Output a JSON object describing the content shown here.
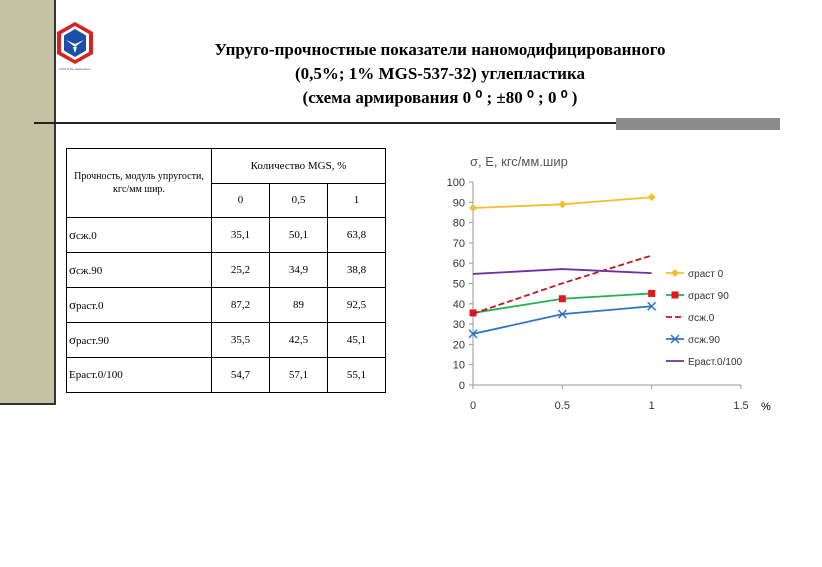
{
  "title": {
    "line1": "Упруго-прочностные показатели наномодифицированного",
    "line2": "(0,5%; 1% MGS-537-32) углепластика",
    "line3": "(схема армирования 0 ⁰  ; ±80  ⁰  ; 0 ⁰ )"
  },
  "logo": {
    "icon": "hexagon-bird-logo-icon",
    "caption": "ООО НТЦ «Композит»"
  },
  "table": {
    "header_left": "Прочность, модуль упругости, кгс/мм шир.",
    "header_top": "Количество MGS, %",
    "columns": [
      "0",
      "0,5",
      "1"
    ],
    "rows": [
      {
        "symbol": "σ",
        "label": "сж.0",
        "values": [
          "35,1",
          "50,1",
          "63,8"
        ]
      },
      {
        "symbol": "σ",
        "label": "сж.90",
        "values": [
          "25,2",
          "34,9",
          "38,8"
        ]
      },
      {
        "symbol": "σ",
        "label": "раст.0",
        "values": [
          "87,2",
          "89",
          "92,5"
        ]
      },
      {
        "symbol": "σ",
        "label": "раст.90",
        "values": [
          "35,5",
          "42,5",
          "45,1"
        ]
      },
      {
        "symbol": "Е",
        "label": "раст.0/100",
        "values": [
          "54,7",
          "57,1",
          "55,1"
        ]
      }
    ]
  },
  "chart_data": {
    "type": "line",
    "title": "σ, Е, кгс/мм.шир",
    "xlabel": "%",
    "x": [
      0,
      0.5,
      1
    ],
    "xlim": [
      0,
      1.5
    ],
    "ylim": [
      0,
      100
    ],
    "x_ticks": [
      0,
      0.5,
      1,
      1.5
    ],
    "y_ticks": [
      0,
      10,
      20,
      30,
      40,
      50,
      60,
      70,
      80,
      90,
      100
    ],
    "x_tick_labels": [
      "0",
      "0.5",
      "1",
      "1.5"
    ],
    "legend_position": "right",
    "grid": false,
    "series": [
      {
        "name": "σраст 0",
        "values": [
          87.2,
          89,
          92.5
        ],
        "color": "#f0c030",
        "marker": "diamond",
        "dash": ""
      },
      {
        "name": "σраст 90",
        "values": [
          35.5,
          42.5,
          45.1
        ],
        "color": "#22b14c",
        "marker": "square",
        "marker_color": "#e8141b",
        "dash": ""
      },
      {
        "name": "σсж.0",
        "values": [
          35.1,
          50.1,
          63.8
        ],
        "color": "#c0151b",
        "marker": "none",
        "dash": "6,3"
      },
      {
        "name": "σсж.90",
        "values": [
          25.2,
          34.9,
          38.8
        ],
        "color": "#2e74c0",
        "marker": "x",
        "dash": ""
      },
      {
        "name": "Ераст.0/100",
        "values": [
          54.7,
          57.1,
          55.1
        ],
        "color": "#7030a0",
        "marker": "none",
        "dash": ""
      }
    ]
  }
}
